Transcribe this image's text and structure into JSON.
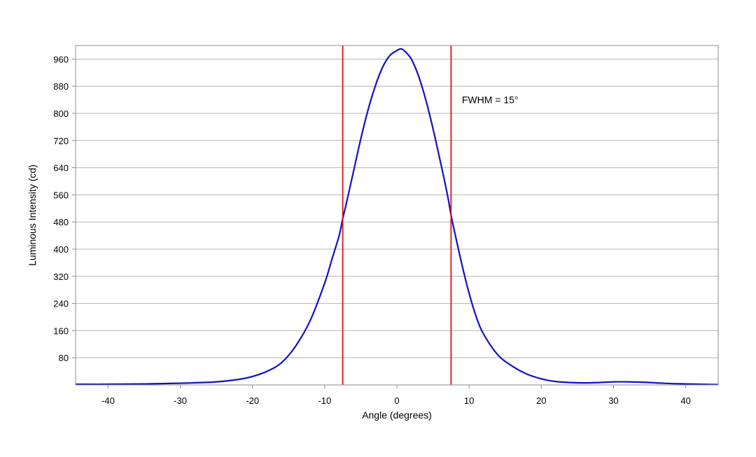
{
  "chart_data": {
    "type": "line",
    "xlabel": "Angle (degrees)",
    "ylabel": "Luminous Intensity (cd)",
    "xlim": [
      -44.5,
      44.5
    ],
    "ylim": [
      0,
      1000
    ],
    "x_ticks": [
      -40,
      -30,
      -20,
      -10,
      0,
      10,
      20,
      30,
      40
    ],
    "y_ticks": [
      80,
      160,
      240,
      320,
      400,
      480,
      560,
      640,
      720,
      800,
      880,
      960
    ],
    "grid": "horizontal",
    "series": [
      {
        "color": "#1010c8",
        "x": [
          -44.5,
          -40,
          -35,
          -30,
          -27,
          -25,
          -22,
          -20,
          -18,
          -16,
          -14,
          -12,
          -10,
          -9,
          -8,
          -7.5,
          -7,
          -6,
          -5,
          -4,
          -3,
          -2,
          -1,
          0,
          0.5,
          1,
          2,
          3,
          4,
          5,
          6,
          7,
          7.5,
          8,
          9,
          10,
          11,
          12,
          14,
          16,
          18,
          20,
          22,
          24,
          26,
          28,
          30,
          32,
          34,
          36,
          38,
          40,
          42,
          44.5
        ],
        "y": [
          2,
          2,
          3,
          5,
          7,
          9,
          16,
          25,
          40,
          65,
          115,
          190,
          300,
          370,
          440,
          490,
          535,
          630,
          725,
          810,
          880,
          935,
          970,
          985,
          990,
          985,
          960,
          910,
          840,
          755,
          660,
          560,
          500,
          450,
          355,
          270,
          200,
          150,
          88,
          55,
          32,
          18,
          10,
          7,
          6,
          7,
          9,
          9,
          8,
          6,
          4,
          3,
          2,
          1
        ]
      }
    ],
    "vlines": [
      {
        "x": -7.5,
        "color": "#e01010"
      },
      {
        "x": 7.5,
        "color": "#e01010"
      }
    ],
    "annotation": {
      "text": "FWHM = 15°",
      "x": 9,
      "y": 830
    }
  }
}
